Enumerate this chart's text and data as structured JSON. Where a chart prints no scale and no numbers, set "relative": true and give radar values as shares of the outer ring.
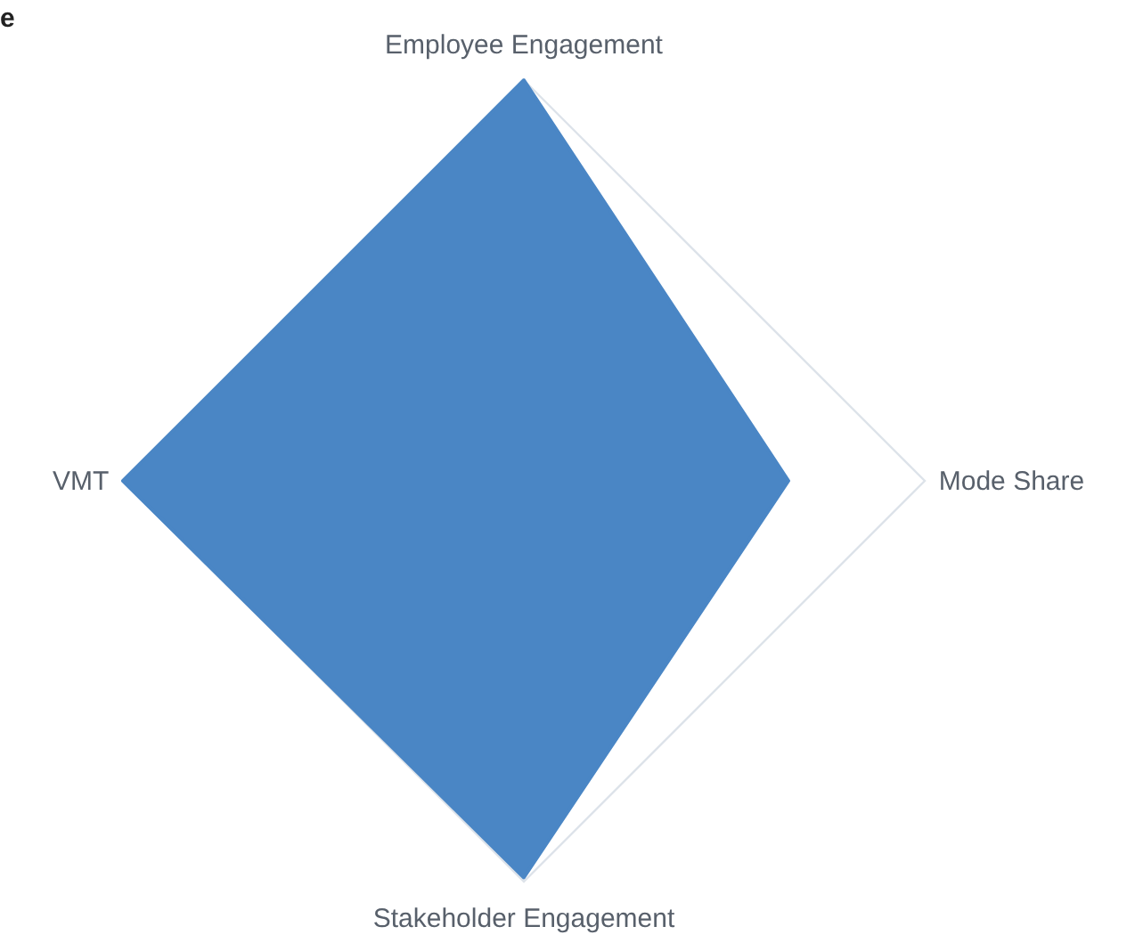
{
  "chart_data": {
    "type": "radar",
    "title": "e",
    "relative": true,
    "grid": true,
    "categories": [
      "Employee Engagement",
      "Mode Share",
      "Stakeholder Engagement",
      "VMT"
    ],
    "series": [
      {
        "color": "#4a86c5",
        "values": [
          1,
          0.66,
          0.99,
          1
        ]
      }
    ]
  }
}
